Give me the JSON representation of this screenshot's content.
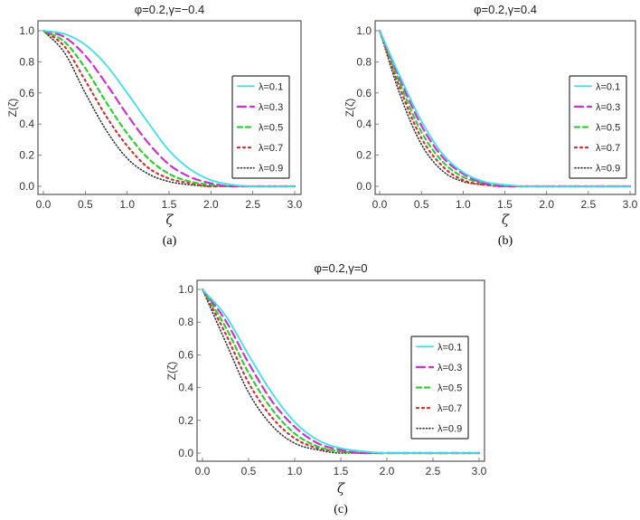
{
  "chart_data": [
    {
      "type": "line",
      "panel": "(a)",
      "title": "φ=0.2,γ=−0.4",
      "xlabel": "ζ",
      "ylabel": "Z(ζ)",
      "xlim": [
        0,
        3
      ],
      "ylim": [
        0,
        1
      ],
      "xticks": [
        "0.0",
        "0.5",
        "1.0",
        "1.5",
        "2.0",
        "2.5",
        "3.0"
      ],
      "yticks": [
        "0.0",
        "0.2",
        "0.4",
        "0.6",
        "0.8",
        "1.0"
      ],
      "legend_position": "right-middle",
      "x": [
        0,
        0.25,
        0.5,
        0.75,
        1.0,
        1.25,
        1.5,
        1.75,
        2.0,
        2.25,
        2.5,
        3.0
      ],
      "series": [
        {
          "name": "λ=0.1",
          "color": "#40E0E8",
          "style": "solid",
          "values": [
            1.0,
            0.98,
            0.91,
            0.78,
            0.6,
            0.41,
            0.23,
            0.11,
            0.04,
            0.01,
            0.0,
            0.0
          ]
        },
        {
          "name": "λ=0.3",
          "color": "#CC33CC",
          "style": "dashed",
          "values": [
            1.0,
            0.96,
            0.84,
            0.66,
            0.46,
            0.28,
            0.14,
            0.06,
            0.02,
            0.0,
            0.0,
            0.0
          ]
        },
        {
          "name": "λ=0.5",
          "color": "#33CC33",
          "style": "dashed-short",
          "values": [
            1.0,
            0.93,
            0.76,
            0.54,
            0.34,
            0.18,
            0.08,
            0.03,
            0.01,
            0.0,
            0.0,
            0.0
          ]
        },
        {
          "name": "λ=0.7",
          "color": "#CC3333",
          "style": "dotted",
          "values": [
            1.0,
            0.9,
            0.68,
            0.45,
            0.26,
            0.12,
            0.05,
            0.02,
            0.0,
            0.0,
            0.0,
            0.0
          ]
        },
        {
          "name": "λ=0.9",
          "color": "#333333",
          "style": "dotted-fine",
          "values": [
            1.0,
            0.86,
            0.6,
            0.36,
            0.18,
            0.08,
            0.03,
            0.01,
            0.0,
            0.0,
            0.0,
            0.0
          ]
        }
      ]
    },
    {
      "type": "line",
      "panel": "(b)",
      "title": "φ=0.2,γ=0.4",
      "xlabel": "ζ",
      "ylabel": "Z(ζ)",
      "xlim": [
        0,
        3
      ],
      "ylim": [
        0,
        1
      ],
      "xticks": [
        "0.0",
        "0.5",
        "1.0",
        "1.5",
        "2.0",
        "2.5",
        "3.0"
      ],
      "yticks": [
        "0.0",
        "0.2",
        "0.4",
        "0.6",
        "0.8",
        "1.0"
      ],
      "legend_position": "right-middle",
      "x": [
        0,
        0.25,
        0.5,
        0.75,
        1.0,
        1.25,
        1.5,
        1.75,
        2.0,
        2.5,
        3.0
      ],
      "series": [
        {
          "name": "λ=0.1",
          "color": "#40E0E8",
          "style": "solid",
          "values": [
            1.0,
            0.7,
            0.42,
            0.21,
            0.09,
            0.03,
            0.01,
            0.0,
            0.0,
            0.0,
            0.0
          ]
        },
        {
          "name": "λ=0.3",
          "color": "#CC33CC",
          "style": "dashed",
          "values": [
            1.0,
            0.68,
            0.39,
            0.19,
            0.08,
            0.02,
            0.0,
            0.0,
            0.0,
            0.0,
            0.0
          ]
        },
        {
          "name": "λ=0.5",
          "color": "#33CC33",
          "style": "dashed-short",
          "values": [
            1.0,
            0.65,
            0.35,
            0.16,
            0.06,
            0.02,
            0.0,
            0.0,
            0.0,
            0.0,
            0.0
          ]
        },
        {
          "name": "λ=0.7",
          "color": "#CC3333",
          "style": "dotted",
          "values": [
            1.0,
            0.62,
            0.31,
            0.13,
            0.04,
            0.01,
            0.0,
            0.0,
            0.0,
            0.0,
            0.0
          ]
        },
        {
          "name": "λ=0.9",
          "color": "#333333",
          "style": "dotted-fine",
          "values": [
            1.0,
            0.58,
            0.27,
            0.1,
            0.03,
            0.01,
            0.0,
            0.0,
            0.0,
            0.0,
            0.0
          ]
        }
      ]
    },
    {
      "type": "line",
      "panel": "(c)",
      "title": "φ=0.2,γ=0",
      "xlabel": "ζ",
      "ylabel": "Z(ζ)",
      "xlim": [
        0,
        3
      ],
      "ylim": [
        0,
        1
      ],
      "xticks": [
        "0.0",
        "0.5",
        "1.0",
        "1.5",
        "2.0",
        "2.5",
        "3.0"
      ],
      "yticks": [
        "0.0",
        "0.2",
        "0.4",
        "0.6",
        "0.8",
        "1.0"
      ],
      "legend_position": "right-middle",
      "x": [
        0,
        0.25,
        0.5,
        0.75,
        1.0,
        1.25,
        1.5,
        1.75,
        2.0,
        2.5,
        3.0
      ],
      "series": [
        {
          "name": "λ=0.1",
          "color": "#40E0E8",
          "style": "solid",
          "values": [
            1.0,
            0.84,
            0.6,
            0.37,
            0.19,
            0.08,
            0.03,
            0.01,
            0.0,
            0.0,
            0.0
          ]
        },
        {
          "name": "λ=0.3",
          "color": "#CC33CC",
          "style": "dashed",
          "values": [
            1.0,
            0.81,
            0.55,
            0.32,
            0.16,
            0.06,
            0.02,
            0.0,
            0.0,
            0.0,
            0.0
          ]
        },
        {
          "name": "λ=0.5",
          "color": "#33CC33",
          "style": "dashed-short",
          "values": [
            1.0,
            0.77,
            0.49,
            0.27,
            0.12,
            0.04,
            0.01,
            0.0,
            0.0,
            0.0,
            0.0
          ]
        },
        {
          "name": "λ=0.7",
          "color": "#CC3333",
          "style": "dotted",
          "values": [
            1.0,
            0.73,
            0.43,
            0.22,
            0.09,
            0.03,
            0.01,
            0.0,
            0.0,
            0.0,
            0.0
          ]
        },
        {
          "name": "λ=0.9",
          "color": "#333333",
          "style": "dotted-fine",
          "values": [
            1.0,
            0.68,
            0.37,
            0.17,
            0.06,
            0.02,
            0.0,
            0.0,
            0.0,
            0.0,
            0.0
          ]
        }
      ]
    }
  ],
  "panels": [
    {
      "caption": "(a)",
      "title": "φ=0.2,γ=−0.4",
      "xlabel": "ζ",
      "ylabel": "Z(ζ)"
    },
    {
      "caption": "(b)",
      "title": "φ=0.2,γ=0.4",
      "xlabel": "ζ",
      "ylabel": "Z(ζ)"
    },
    {
      "caption": "(c)",
      "title": "φ=0.2,γ=0",
      "xlabel": "ζ",
      "ylabel": "Z(ζ)"
    }
  ]
}
